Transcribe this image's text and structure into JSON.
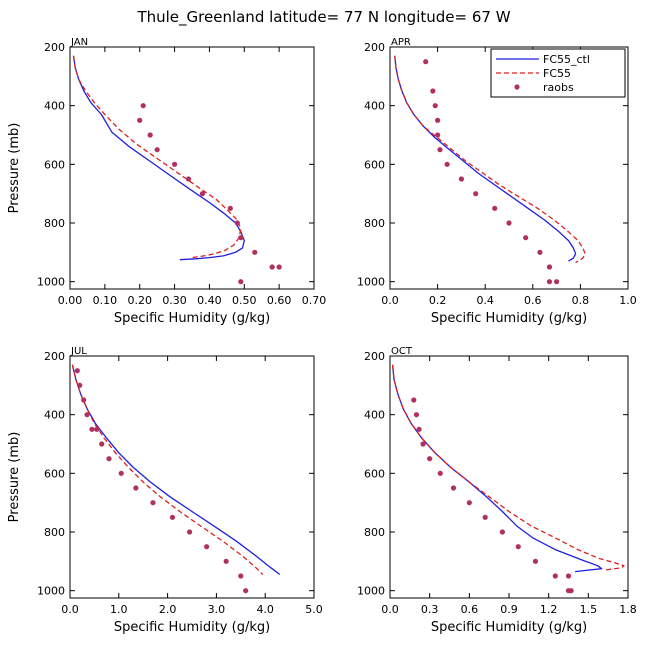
{
  "title": "Thule_Greenland  latitude= 77 N longitude= 67 W",
  "colors": {
    "ctl": "#1f1fe0",
    "fc55": "#e01f1f",
    "raobs": "#b03060"
  },
  "legend": {
    "ctl": "FC55_ctl",
    "fc55": "FC55",
    "raobs": "raobs",
    "placement": "top-right of APR panel"
  },
  "chart_data": [
    {
      "id": "jan",
      "type": "line",
      "panel_title": "JAN",
      "xlabel": "Specific Humidity (g/kg)",
      "ylabel": "Pressure (mb)",
      "xlim": [
        0,
        0.7
      ],
      "ylim": [
        200,
        1025
      ],
      "y_inverted": true,
      "xticks": [
        0,
        0.1,
        0.2,
        0.3,
        0.4,
        0.5,
        0.6,
        0.7
      ],
      "xtick_labels": [
        "0.00",
        "0.10",
        "0.20",
        "0.30",
        "0.40",
        "0.50",
        "0.60",
        "0.70"
      ],
      "yticks": [
        200,
        400,
        600,
        800,
        1000
      ],
      "series": [
        {
          "name": "FC55_ctl",
          "style": "solid",
          "color": "#1f1fe0",
          "x": [
            0.01,
            0.015,
            0.025,
            0.04,
            0.06,
            0.09,
            0.12,
            0.17,
            0.23,
            0.29,
            0.35,
            0.4,
            0.445,
            0.475,
            0.49,
            0.5,
            0.495,
            0.475,
            0.44,
            0.4,
            0.36,
            0.315
          ],
          "y": [
            230,
            270,
            310,
            350,
            390,
            430,
            490,
            540,
            590,
            640,
            690,
            730,
            770,
            800,
            830,
            860,
            885,
            900,
            912,
            918,
            922,
            925
          ]
        },
        {
          "name": "FC55",
          "style": "dashed",
          "color": "#e01f1f",
          "x": [
            0.01,
            0.015,
            0.025,
            0.045,
            0.07,
            0.1,
            0.14,
            0.19,
            0.25,
            0.31,
            0.37,
            0.42,
            0.455,
            0.48,
            0.49,
            0.485,
            0.47,
            0.445,
            0.415,
            0.38,
            0.35
          ],
          "y": [
            230,
            270,
            310,
            350,
            390,
            430,
            480,
            530,
            580,
            630,
            680,
            720,
            760,
            790,
            820,
            850,
            875,
            893,
            905,
            913,
            918
          ]
        },
        {
          "name": "raobs",
          "style": "markers",
          "color": "#b03060",
          "x": [
            0.21,
            0.2,
            0.23,
            0.25,
            0.3,
            0.34,
            0.38,
            0.46,
            0.48,
            0.49,
            0.53,
            0.58,
            0.6,
            0.49
          ],
          "y": [
            400,
            450,
            500,
            550,
            600,
            650,
            700,
            750,
            800,
            850,
            900,
            950,
            950,
            1000
          ]
        }
      ]
    },
    {
      "id": "apr",
      "type": "line",
      "panel_title": "APR",
      "xlabel": "Specific Humidity (g/kg)",
      "ylabel": "",
      "xlim": [
        0,
        1.0
      ],
      "ylim": [
        200,
        1025
      ],
      "y_inverted": true,
      "xticks": [
        0,
        0.2,
        0.4,
        0.6,
        0.8,
        1.0
      ],
      "xtick_labels": [
        "0.0",
        "0.2",
        "0.4",
        "0.6",
        "0.8",
        "1.0"
      ],
      "yticks": [
        200,
        400,
        600,
        800,
        1000
      ],
      "series": [
        {
          "name": "FC55_ctl",
          "style": "solid",
          "color": "#1f1fe0",
          "x": [
            0.02,
            0.025,
            0.035,
            0.05,
            0.07,
            0.1,
            0.14,
            0.19,
            0.25,
            0.31,
            0.37,
            0.44,
            0.51,
            0.58,
            0.65,
            0.71,
            0.75,
            0.77,
            0.78,
            0.77,
            0.75
          ],
          "y": [
            230,
            270,
            310,
            350,
            390,
            430,
            470,
            510,
            550,
            590,
            630,
            670,
            710,
            750,
            790,
            830,
            860,
            885,
            905,
            920,
            930
          ]
        },
        {
          "name": "FC55",
          "style": "dashed",
          "color": "#e01f1f",
          "x": [
            0.02,
            0.025,
            0.035,
            0.05,
            0.07,
            0.1,
            0.14,
            0.2,
            0.26,
            0.32,
            0.39,
            0.46,
            0.54,
            0.62,
            0.69,
            0.75,
            0.79,
            0.81,
            0.82,
            0.81,
            0.78
          ],
          "y": [
            230,
            270,
            310,
            350,
            390,
            430,
            470,
            510,
            550,
            590,
            630,
            670,
            710,
            750,
            790,
            830,
            860,
            885,
            905,
            920,
            935
          ]
        },
        {
          "name": "raobs",
          "style": "markers",
          "color": "#b03060",
          "x": [
            0.15,
            0.18,
            0.19,
            0.2,
            0.2,
            0.21,
            0.24,
            0.3,
            0.36,
            0.44,
            0.5,
            0.57,
            0.63,
            0.67,
            0.7,
            0.67
          ],
          "y": [
            250,
            350,
            400,
            450,
            500,
            550,
            600,
            650,
            700,
            750,
            800,
            850,
            900,
            950,
            1000,
            1000
          ]
        }
      ]
    },
    {
      "id": "jul",
      "type": "line",
      "panel_title": "JUL",
      "xlabel": "Specific Humidity (g/kg)",
      "ylabel": "Pressure (mb)",
      "xlim": [
        0,
        5.0
      ],
      "ylim": [
        200,
        1025
      ],
      "y_inverted": true,
      "xticks": [
        0,
        1,
        2,
        3,
        4,
        5
      ],
      "xtick_labels": [
        "0.0",
        "1.0",
        "2.0",
        "3.0",
        "4.0",
        "5.0"
      ],
      "yticks": [
        200,
        400,
        600,
        800,
        1000
      ],
      "series": [
        {
          "name": "FC55_ctl",
          "style": "solid",
          "color": "#1f1fe0",
          "x": [
            0.05,
            0.12,
            0.22,
            0.35,
            0.52,
            0.75,
            1.0,
            1.3,
            1.65,
            2.05,
            2.5,
            2.95,
            3.4,
            3.8,
            4.1,
            4.3
          ],
          "y": [
            230,
            280,
            330,
            380,
            430,
            480,
            530,
            580,
            630,
            680,
            730,
            780,
            830,
            880,
            920,
            945
          ]
        },
        {
          "name": "FC55",
          "style": "dashed",
          "color": "#e01f1f",
          "x": [
            0.05,
            0.12,
            0.22,
            0.35,
            0.5,
            0.7,
            0.93,
            1.2,
            1.5,
            1.85,
            2.25,
            2.68,
            3.12,
            3.52,
            3.8,
            3.95
          ],
          "y": [
            230,
            280,
            330,
            380,
            430,
            480,
            530,
            580,
            630,
            680,
            730,
            780,
            830,
            880,
            920,
            945
          ]
        },
        {
          "name": "raobs",
          "style": "markers",
          "color": "#b03060",
          "x": [
            0.15,
            0.2,
            0.28,
            0.35,
            0.45,
            0.55,
            0.65,
            0.8,
            1.05,
            1.35,
            1.7,
            2.1,
            2.45,
            2.8,
            3.2,
            3.5,
            3.6
          ],
          "y": [
            250,
            300,
            350,
            400,
            450,
            450,
            500,
            550,
            600,
            650,
            700,
            750,
            800,
            850,
            900,
            950,
            1000
          ]
        }
      ]
    },
    {
      "id": "oct",
      "type": "line",
      "panel_title": "OCT",
      "xlabel": "Specific Humidity (g/kg)",
      "ylabel": "",
      "xlim": [
        0,
        1.8
      ],
      "ylim": [
        200,
        1025
      ],
      "y_inverted": true,
      "xticks": [
        0,
        0.3,
        0.6,
        0.9,
        1.2,
        1.5,
        1.8
      ],
      "xtick_labels": [
        "0.0",
        "0.3",
        "0.6",
        "0.9",
        "1.2",
        "1.5",
        "1.8"
      ],
      "yticks": [
        200,
        400,
        600,
        800,
        1000
      ],
      "series": [
        {
          "name": "FC55_ctl",
          "style": "solid",
          "color": "#1f1fe0",
          "x": [
            0.02,
            0.03,
            0.06,
            0.1,
            0.16,
            0.24,
            0.34,
            0.46,
            0.6,
            0.73,
            0.85,
            0.96,
            1.08,
            1.25,
            1.45,
            1.57,
            1.6,
            1.5,
            1.4
          ],
          "y": [
            230,
            280,
            330,
            380,
            430,
            480,
            530,
            580,
            630,
            680,
            730,
            780,
            820,
            860,
            895,
            915,
            925,
            930,
            935
          ]
        },
        {
          "name": "FC55",
          "style": "dashed",
          "color": "#e01f1f",
          "x": [
            0.02,
            0.03,
            0.06,
            0.1,
            0.16,
            0.24,
            0.34,
            0.46,
            0.6,
            0.75,
            0.9,
            1.07,
            1.25,
            1.42,
            1.58,
            1.7,
            1.77,
            1.75,
            1.62
          ],
          "y": [
            230,
            280,
            330,
            380,
            430,
            480,
            530,
            580,
            630,
            680,
            730,
            780,
            820,
            860,
            890,
            905,
            915,
            922,
            930
          ]
        },
        {
          "name": "raobs",
          "style": "markers",
          "color": "#b03060",
          "x": [
            0.18,
            0.2,
            0.22,
            0.25,
            0.3,
            0.38,
            0.48,
            0.6,
            0.72,
            0.85,
            0.97,
            1.1,
            1.25,
            1.35,
            1.37,
            1.35
          ],
          "y": [
            350,
            400,
            450,
            500,
            550,
            600,
            650,
            700,
            750,
            800,
            850,
            900,
            950,
            1000,
            1000,
            950
          ]
        }
      ]
    }
  ]
}
